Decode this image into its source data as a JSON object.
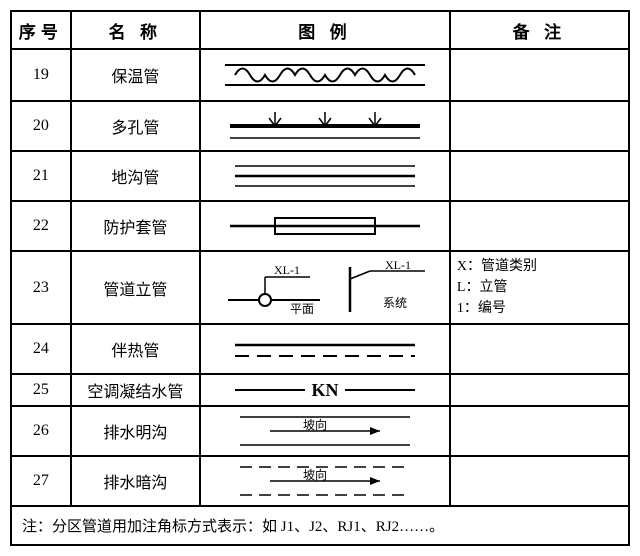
{
  "headers": {
    "seq": "序号",
    "name": "名 称",
    "symbol": "图 例",
    "note": "备  注"
  },
  "rows": [
    {
      "seq": "19",
      "name": "保温管",
      "symbol": "insulated",
      "note": ""
    },
    {
      "seq": "20",
      "name": "多孔管",
      "symbol": "porous",
      "note": ""
    },
    {
      "seq": "21",
      "name": "地沟管",
      "symbol": "trench",
      "note": ""
    },
    {
      "seq": "22",
      "name": "防护套管",
      "symbol": "casing",
      "note": ""
    },
    {
      "seq": "23",
      "name": "管道立管",
      "symbol": "riser",
      "note": "X：管道类别\nL：立管\n1：编号"
    },
    {
      "seq": "24",
      "name": "伴热管",
      "symbol": "tracing",
      "note": ""
    },
    {
      "seq": "25",
      "name": "空调凝结水管",
      "symbol": "kn",
      "note": ""
    },
    {
      "seq": "26",
      "name": "排水明沟",
      "symbol": "open_ditch",
      "note": ""
    },
    {
      "seq": "27",
      "name": "排水暗沟",
      "symbol": "closed_ditch",
      "note": ""
    }
  ],
  "footnote": "注：分区管道用加注角标方式表示：如 J1、J2、RJ1、RJ2……。",
  "symbol_labels": {
    "riser_code": "XL-1",
    "riser_plan": "平面",
    "riser_system": "系统",
    "kn": "KN",
    "slope": "坡向"
  },
  "colors": {
    "stroke": "#000000",
    "bg": "#ffffff"
  }
}
